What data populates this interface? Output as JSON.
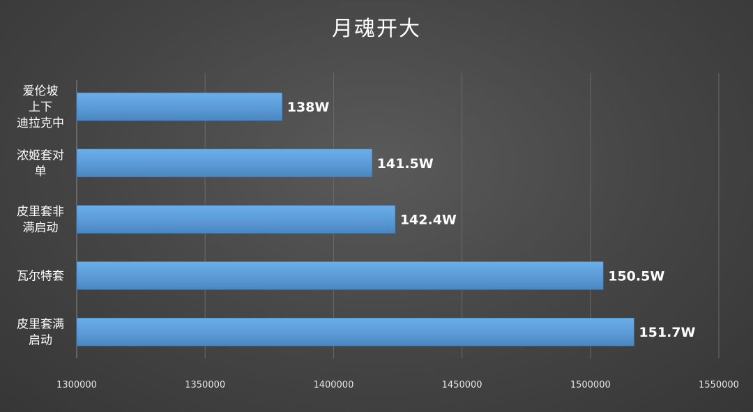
{
  "chart_data": {
    "type": "bar",
    "orientation": "horizontal",
    "title": "月魂开大",
    "categories": [
      [
        "爱伦坡",
        "上下",
        "迪拉克中"
      ],
      [
        "浓姬套对",
        "单"
      ],
      [
        "皮里套非",
        "满启动"
      ],
      [
        "瓦尔特套"
      ],
      [
        "皮里套满",
        "启动"
      ]
    ],
    "values": [
      1380000,
      1415000,
      1424000,
      1505000,
      1517000
    ],
    "data_labels": [
      "138W",
      "141.5W",
      "142.4W",
      "150.5W",
      "151.7W"
    ],
    "xlim": [
      1300000,
      1550000
    ],
    "xticks": [
      1300000,
      1350000,
      1400000,
      1450000,
      1500000,
      1550000
    ],
    "grid": true,
    "bar_color": "#5b9bd5",
    "background_color": "#444444"
  }
}
